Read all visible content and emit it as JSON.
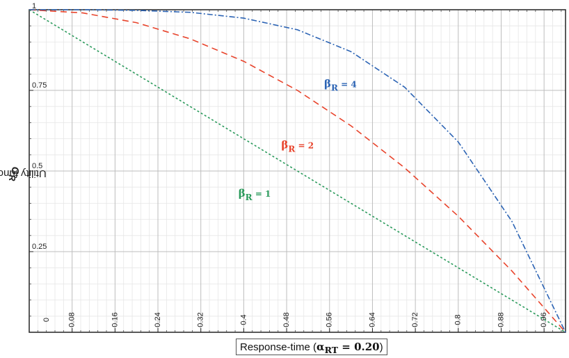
{
  "chart_data": {
    "type": "line",
    "title": "",
    "xlabel": {
      "prefix": "Response-time (",
      "alpha_symbol": "α",
      "alpha_subscript": "RT",
      "alpha_value": " = 0.20",
      "suffix": ")"
    },
    "ylabel": {
      "text": "Utility function ",
      "symbol": "G",
      "subscript": "R"
    },
    "xlim": [
      0,
      1
    ],
    "ylim": [
      0,
      1
    ],
    "x_ticks": [
      "0",
      "0.08",
      "0.16",
      "0.24",
      "0.32",
      "0.4",
      "0.48",
      "0.56",
      "0.64",
      "0.72",
      "0.8",
      "0.88",
      "0.96"
    ],
    "y_ticks": [
      "0.25",
      "0.5",
      "0.75",
      "1"
    ],
    "grid": true,
    "series": [
      {
        "name": {
          "symbol": "β",
          "subscript": "R",
          "value": " = 1"
        },
        "color": "#2a9a5b",
        "dash": "dotted",
        "x": [
          0,
          0.1,
          0.2,
          0.3,
          0.4,
          0.5,
          0.6,
          0.7,
          0.8,
          0.9,
          1.0
        ],
        "y": [
          1.0,
          0.9,
          0.8,
          0.7,
          0.6,
          0.5,
          0.4,
          0.3,
          0.2,
          0.1,
          0.0
        ]
      },
      {
        "name": {
          "symbol": "β",
          "subscript": "R",
          "value": " = 2"
        },
        "color": "#e8432b",
        "dash": "dashed",
        "x": [
          0,
          0.1,
          0.2,
          0.3,
          0.4,
          0.5,
          0.6,
          0.7,
          0.8,
          0.9,
          1.0
        ],
        "y": [
          1.0,
          0.99,
          0.96,
          0.91,
          0.84,
          0.75,
          0.64,
          0.51,
          0.36,
          0.19,
          0.0
        ]
      },
      {
        "name": {
          "symbol": "β",
          "subscript": "R",
          "value": " = 4"
        },
        "color": "#2b63b4",
        "dash": "dash-dot",
        "x": [
          0,
          0.1,
          0.2,
          0.3,
          0.4,
          0.5,
          0.6,
          0.7,
          0.8,
          0.9,
          1.0
        ],
        "y": [
          1.0,
          1.0,
          0.998,
          0.992,
          0.974,
          0.938,
          0.87,
          0.76,
          0.59,
          0.344,
          0.0
        ]
      }
    ]
  }
}
